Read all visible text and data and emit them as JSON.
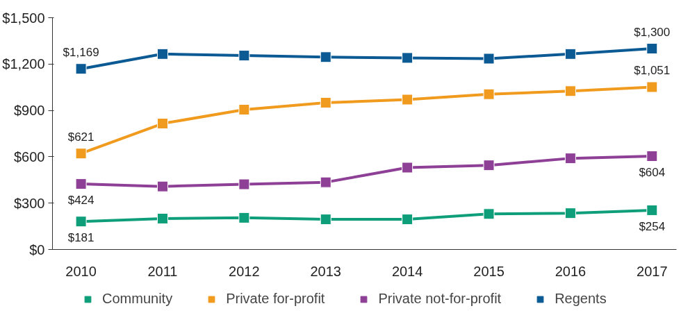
{
  "chart_data": {
    "type": "line",
    "categories": [
      "2010",
      "2011",
      "2012",
      "2013",
      "2014",
      "2015",
      "2016",
      "2017"
    ],
    "series": [
      {
        "name": "Community",
        "color": "#0e9f7a",
        "values": [
          181,
          200,
          205,
          195,
          195,
          230,
          235,
          254
        ],
        "value_labels": [
          "$181",
          null,
          null,
          null,
          null,
          null,
          null,
          "$254"
        ]
      },
      {
        "name": "Private for-profit",
        "color": "#f09a1e",
        "values": [
          621,
          815,
          905,
          950,
          970,
          1005,
          1025,
          1051
        ],
        "value_labels": [
          "$621",
          null,
          null,
          null,
          null,
          null,
          null,
          "$1,051"
        ]
      },
      {
        "name": "Private not-for-profit",
        "color": "#8e3f96",
        "values": [
          424,
          408,
          422,
          435,
          530,
          545,
          590,
          604
        ],
        "value_labels": [
          "$424",
          null,
          null,
          null,
          null,
          null,
          null,
          "$604"
        ]
      },
      {
        "name": "Regents",
        "color": "#0b5a94",
        "values": [
          1169,
          1265,
          1255,
          1245,
          1240,
          1235,
          1265,
          1300
        ],
        "value_labels": [
          "$1,169",
          null,
          null,
          null,
          null,
          null,
          null,
          "$1,300"
        ]
      }
    ],
    "ylim": [
      0,
      1500
    ],
    "yticks": [
      {
        "value": 0,
        "label": "$0"
      },
      {
        "value": 300,
        "label": "$300"
      },
      {
        "value": 600,
        "label": "$600"
      },
      {
        "value": 900,
        "label": "$900"
      },
      {
        "value": 1200,
        "label": "$1,200"
      },
      {
        "value": 1500,
        "label": "$1,500"
      }
    ],
    "grid": false,
    "legend": "bottom",
    "marker": "square",
    "line_style": "solid"
  }
}
